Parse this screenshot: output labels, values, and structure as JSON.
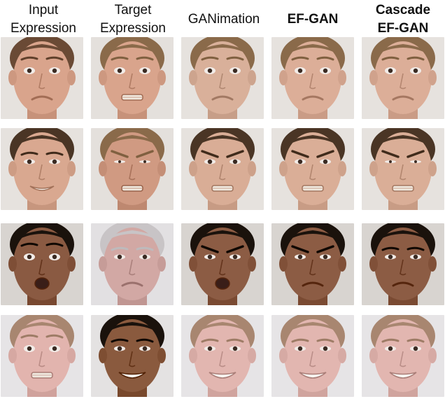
{
  "columns": [
    {
      "lines": [
        "Input",
        "Expression"
      ],
      "bold": false
    },
    {
      "lines": [
        "Target",
        "Expression"
      ],
      "bold": false
    },
    {
      "lines": [
        "GANimation"
      ],
      "bold": false
    },
    {
      "lines": [
        "EF-GAN"
      ],
      "bold": true
    },
    {
      "lines": [
        "Cascade",
        "EF-GAN"
      ],
      "bold": true
    }
  ],
  "rows": [
    [
      {
        "skin": "#d9a48c",
        "hair": "#6a4a35",
        "bg": "#e6e2de",
        "eye": "surprise",
        "mouth": "frown",
        "brow": "raised"
      },
      {
        "skin": "#d9a48c",
        "hair": "#8a6a4a",
        "bg": "#e4e0dc",
        "eye": "wide",
        "mouth": "grimace",
        "brow": "raised"
      },
      {
        "skin": "#d9b09a",
        "hair": "#8a6a4a",
        "bg": "#e6e2de",
        "eye": "wide",
        "mouth": "frown",
        "brow": "raised"
      },
      {
        "skin": "#dcae98",
        "hair": "#8a6a4a",
        "bg": "#e6e2de",
        "eye": "wide",
        "mouth": "frown",
        "brow": "raised"
      },
      {
        "skin": "#dcae98",
        "hair": "#8a6a4a",
        "bg": "#e6e2de",
        "eye": "wide",
        "mouth": "frown",
        "brow": "raised"
      }
    ],
    [
      {
        "skin": "#d9a890",
        "hair": "#4a3525",
        "bg": "#e6e2de",
        "eye": "normal",
        "mouth": "smile",
        "brow": "normal"
      },
      {
        "skin": "#d09a82",
        "hair": "#8a6a4a",
        "bg": "#e4e0dc",
        "eye": "squint",
        "mouth": "teeth",
        "brow": "angry"
      },
      {
        "skin": "#d9ad96",
        "hair": "#4a3525",
        "bg": "#e6e2de",
        "eye": "normal",
        "mouth": "teeth",
        "brow": "angry"
      },
      {
        "skin": "#daae97",
        "hair": "#4a3525",
        "bg": "#e6e2de",
        "eye": "normal",
        "mouth": "teeth",
        "brow": "angry"
      },
      {
        "skin": "#daae97",
        "hair": "#4a3525",
        "bg": "#e6e2de",
        "eye": "squint",
        "mouth": "teeth",
        "brow": "angry"
      }
    ],
    [
      {
        "skin": "#8a5a42",
        "hair": "#1a120c",
        "bg": "#d8d4d0",
        "eye": "wide",
        "mouth": "open",
        "brow": "raised"
      },
      {
        "skin": "#d2a8a4",
        "hair": "#c8c4c6",
        "bg": "#e2e0e2",
        "eye": "normal",
        "mouth": "frown",
        "brow": "normal"
      },
      {
        "skin": "#8c5c44",
        "hair": "#1a120c",
        "bg": "#d8d4d0",
        "eye": "normal",
        "mouth": "open",
        "brow": "angry"
      },
      {
        "skin": "#8c5c44",
        "hair": "#1a120c",
        "bg": "#d8d4d0",
        "eye": "normal",
        "mouth": "frown",
        "brow": "angry"
      },
      {
        "skin": "#8c5c44",
        "hair": "#1a120c",
        "bg": "#d8d4d0",
        "eye": "normal",
        "mouth": "frown",
        "brow": "normal"
      }
    ],
    [
      {
        "skin": "#e2b4ae",
        "hair": "#a88670",
        "bg": "#e6e4e6",
        "eye": "wide",
        "mouth": "teeth",
        "brow": "raised"
      },
      {
        "skin": "#8a5a3e",
        "hair": "#1a120c",
        "bg": "#e4e2e2",
        "eye": "normal",
        "mouth": "bigsmile",
        "brow": "normal"
      },
      {
        "skin": "#e2b6b0",
        "hair": "#a88670",
        "bg": "#e6e4e6",
        "eye": "normal",
        "mouth": "bigsmile",
        "brow": "normal"
      },
      {
        "skin": "#e2b6b0",
        "hair": "#a88670",
        "bg": "#e6e4e6",
        "eye": "normal",
        "mouth": "bigsmile",
        "brow": "normal"
      },
      {
        "skin": "#e2b6b0",
        "hair": "#a88670",
        "bg": "#e6e4e6",
        "eye": "normal",
        "mouth": "bigsmile",
        "brow": "normal"
      }
    ]
  ]
}
